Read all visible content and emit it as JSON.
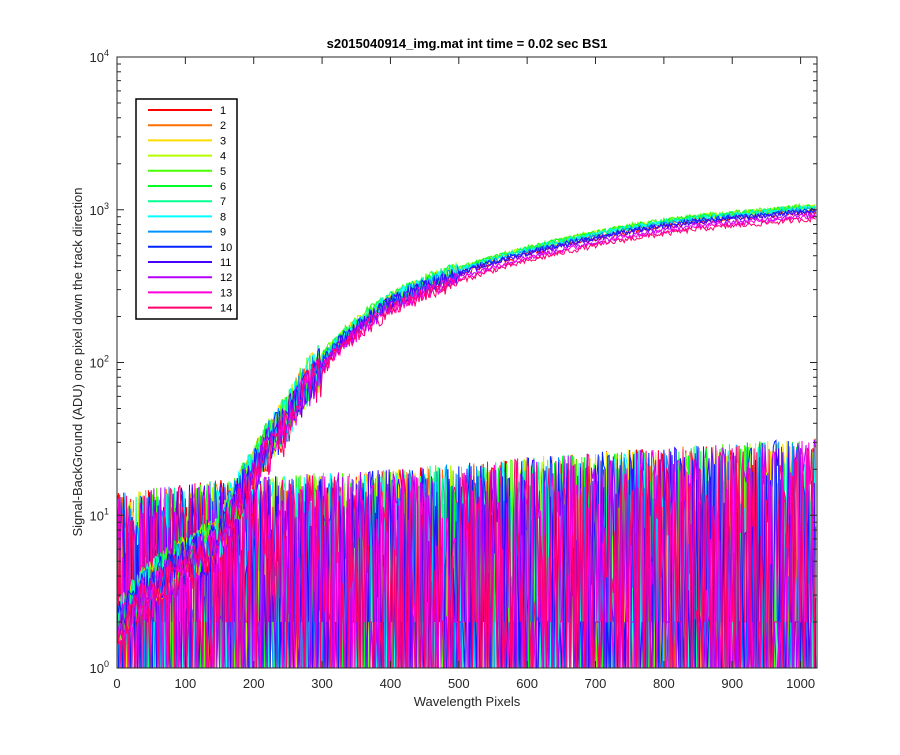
{
  "chart_data": {
    "type": "line",
    "title": "s2015040914_img.mat int time = 0.02 sec   BS1",
    "xlabel": "Wavelength Pixels",
    "ylabel": "Signal-BackGround (ADU) one pixel down the track direction",
    "xlim": [
      0,
      1024
    ],
    "ylim": [
      1,
      10000
    ],
    "yscale": "log",
    "grid": false,
    "legend_position": "top-left",
    "x_ticks": [
      0,
      100,
      200,
      300,
      400,
      500,
      600,
      700,
      800,
      900,
      1000
    ],
    "y_ticks": [
      {
        "value": 1,
        "base": "10",
        "exp": "0"
      },
      {
        "value": 10,
        "base": "10",
        "exp": "1"
      },
      {
        "value": 100,
        "base": "10",
        "exp": "2"
      },
      {
        "value": 1000,
        "base": "10",
        "exp": "3"
      },
      {
        "value": 10000,
        "base": "10",
        "exp": "4"
      }
    ],
    "signal_curve": {
      "x": [
        0,
        150,
        200,
        250,
        300,
        350,
        400,
        450,
        500,
        550,
        600,
        650,
        700,
        750,
        800,
        850,
        900,
        950,
        1000,
        1023
      ],
      "y": [
        2,
        7,
        20,
        45,
        100,
        170,
        250,
        320,
        390,
        460,
        530,
        600,
        670,
        740,
        800,
        860,
        900,
        940,
        990,
        1000
      ]
    },
    "noise_band": {
      "x": [
        0,
        200,
        400,
        600,
        800,
        1023
      ],
      "y_low": [
        1,
        1,
        1,
        1,
        1,
        1
      ],
      "y_high": [
        14,
        18,
        20,
        24,
        28,
        32
      ]
    },
    "series": [
      {
        "name": "1",
        "color": "#ff0000",
        "signal_scale": 0.97
      },
      {
        "name": "2",
        "color": "#ff6e00",
        "signal_scale": 1.02
      },
      {
        "name": "3",
        "color": "#ffdb00",
        "signal_scale": 1.03
      },
      {
        "name": "4",
        "color": "#b6ff00",
        "signal_scale": 1.05
      },
      {
        "name": "5",
        "color": "#49ff00",
        "signal_scale": 1.06
      },
      {
        "name": "6",
        "color": "#00ff24",
        "signal_scale": 1.05
      },
      {
        "name": "7",
        "color": "#00ff92",
        "signal_scale": 1.04
      },
      {
        "name": "8",
        "color": "#00ffff",
        "signal_scale": 1.03
      },
      {
        "name": "9",
        "color": "#0092ff",
        "signal_scale": 1.0
      },
      {
        "name": "10",
        "color": "#0024ff",
        "signal_scale": 0.99
      },
      {
        "name": "11",
        "color": "#4900ff",
        "signal_scale": 0.97
      },
      {
        "name": "12",
        "color": "#b600ff",
        "signal_scale": 0.92
      },
      {
        "name": "13",
        "color": "#ff00db",
        "signal_scale": 0.9
      },
      {
        "name": "14",
        "color": "#ff006d",
        "signal_scale": 0.87
      }
    ]
  }
}
